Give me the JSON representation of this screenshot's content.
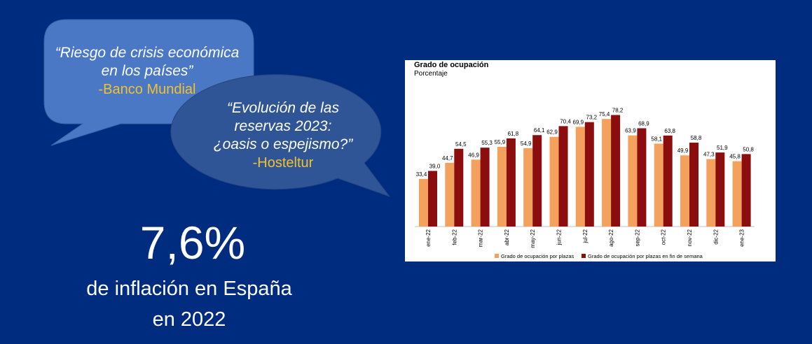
{
  "quotes": [
    {
      "text_line1": "“Riesgo de crisis económica",
      "text_line2": "en los países”",
      "source": "-Banco Mundial"
    },
    {
      "text_line1": "“Evolución de las",
      "text_line2": "reservas 2023:",
      "text_line3": "¿oasis o espejismo?”",
      "source": "-Hosteltur"
    }
  ],
  "stat": {
    "value": "7,6%",
    "line1": "de inflación en España",
    "line2": "en 2022"
  },
  "colors": {
    "background": "#002c80",
    "bubble1": "#4a78c4",
    "bubble2": "#2f5597",
    "source_text": "#f2c12e",
    "series_plazas": "#f4a15d",
    "series_fin_semana": "#8b0d0d"
  },
  "chart_data": {
    "type": "bar",
    "title": "Grado de ocupación",
    "subtitle": "Porcentaje",
    "xlabel": "",
    "ylabel": "",
    "categories": [
      "ene-22",
      "feb-22",
      "mar-22",
      "abr-22",
      "may-22",
      "jun-22",
      "jul-22",
      "ago-22",
      "sep-22",
      "oct-22",
      "nov-22",
      "dic-22",
      "ene-23"
    ],
    "series": [
      {
        "name": "Grado de ocupación por plazas",
        "values": [
          33.4,
          44.7,
          46.9,
          55.9,
          54.9,
          62.9,
          69.9,
          75.4,
          63.9,
          58.1,
          49.9,
          47.3,
          45.8
        ]
      },
      {
        "name": "Grado de ocupación por plazas en fin de semana",
        "values": [
          39.0,
          54.5,
          55.3,
          61.8,
          64.1,
          70.4,
          73.2,
          78.2,
          68.9,
          63.8,
          58.8,
          51.9,
          50.8
        ]
      }
    ],
    "value_labels": [
      [
        "33,4",
        "44,7",
        "46,9",
        "55,9",
        "54,9",
        "62,9",
        "69,9",
        "75,4",
        "63,9",
        "58,1",
        "49,9",
        "47,3",
        "45,8"
      ],
      [
        "39,0",
        "54,5",
        "55,3",
        "61,8",
        "64,1",
        "70,4",
        "73,2",
        "78,2",
        "68,9",
        "63,8",
        "58,8",
        "51,9",
        "50,8"
      ]
    ],
    "ylim": [
      0,
      100
    ],
    "legend_position": "bottom"
  }
}
